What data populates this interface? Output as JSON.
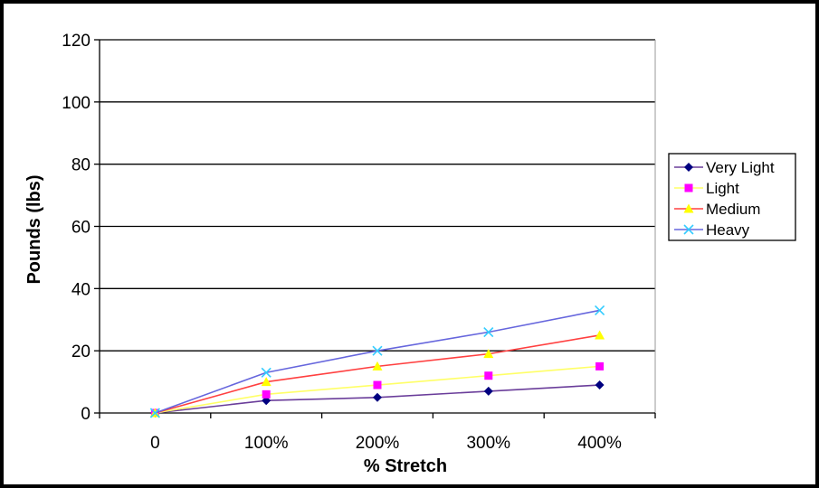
{
  "chart_data": {
    "type": "line",
    "categories": [
      "0",
      "100%",
      "200%",
      "300%",
      "400%"
    ],
    "xlabel": "% Stretch",
    "ylabel": "Pounds (lbs)",
    "ylim": [
      0,
      120
    ],
    "yticks": [
      0,
      20,
      40,
      60,
      80,
      100,
      120
    ],
    "grid": "horizontal",
    "legend": "right",
    "series": [
      {
        "name": "Very Light",
        "values": [
          0,
          4,
          5,
          7,
          9
        ],
        "color": "#6a3d9a",
        "marker_color": "#000080",
        "marker": "diamond"
      },
      {
        "name": "Light",
        "values": [
          0,
          6,
          9,
          12,
          15
        ],
        "color": "#ffff66",
        "marker_color": "#ff00ff",
        "marker": "square"
      },
      {
        "name": "Medium",
        "values": [
          0,
          10,
          15,
          19,
          25
        ],
        "color": "#ff4040",
        "marker_color": "#ffff00",
        "marker": "triangle"
      },
      {
        "name": "Heavy",
        "values": [
          0,
          13,
          20,
          26,
          33
        ],
        "color": "#6666dd",
        "marker_color": "#33ccff",
        "marker": "x"
      }
    ]
  }
}
